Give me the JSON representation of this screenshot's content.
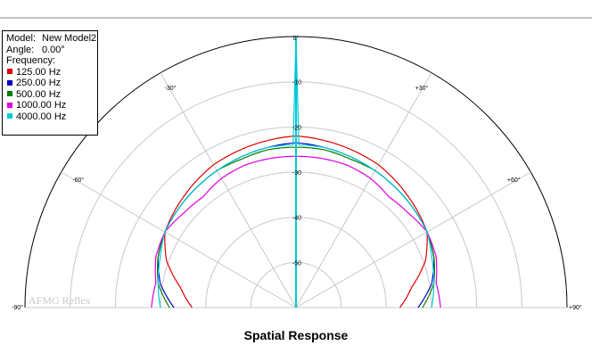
{
  "chart_data": {
    "type": "polar-line",
    "title": "Spatial Response",
    "angle_range": [
      -90,
      90
    ],
    "angle_ticks": [
      "-90°",
      "-60°",
      "-30°",
      "0°",
      "+30°",
      "+60°",
      "+90°"
    ],
    "radial_unit": "dB",
    "radial_range": [
      -60,
      0
    ],
    "radial_ticks": [
      "-10",
      "-20",
      "-30",
      "-40",
      "-50"
    ],
    "info": {
      "model_label": "Model:",
      "model_value": "New Model2",
      "angle_label": "Angle:",
      "angle_value": "0.00°",
      "frequency_label": "Frequency:"
    },
    "watermark": "AFMG Reflex",
    "series": [
      {
        "name": "125.00 Hz",
        "color": "#e00000",
        "angles": [
          -90,
          -80,
          -70,
          -60,
          -50,
          -40,
          -30,
          -20,
          -10,
          0,
          10,
          20,
          30,
          40,
          50,
          60,
          70,
          80,
          90
        ],
        "values": [
          -37,
          -34,
          -29.5,
          -26.5,
          -25.5,
          -24.5,
          -23.5,
          -23,
          -22.5,
          -22,
          -22.5,
          -23,
          -23.5,
          -24.5,
          -25.5,
          -26.5,
          -29.5,
          -34,
          -37
        ]
      },
      {
        "name": "250.00 Hz",
        "color": "#0000c0",
        "angles": [
          -90,
          -80,
          -70,
          -60,
          -50,
          -40,
          -30,
          -20,
          -10,
          0,
          10,
          20,
          30,
          40,
          50,
          60,
          70,
          80,
          90
        ],
        "values": [
          -33,
          -29.5,
          -27.5,
          -26.5,
          -26,
          -25.5,
          -25,
          -24.5,
          -24,
          -23.5,
          -24,
          -24.5,
          -25,
          -25.5,
          -26,
          -26.5,
          -27.5,
          -29.5,
          -33
        ]
      },
      {
        "name": "500.00 Hz",
        "color": "#008000",
        "angles": [
          -90,
          -80,
          -70,
          -60,
          -50,
          -40,
          -30,
          -20,
          -10,
          0,
          10,
          20,
          30,
          40,
          50,
          60,
          70,
          80,
          90
        ],
        "values": [
          -32,
          -29,
          -27.5,
          -26.5,
          -26,
          -25.5,
          -25,
          -25,
          -24.5,
          -24.5,
          -24.5,
          -25,
          -25,
          -25.5,
          -26,
          -26.5,
          -27.5,
          -29,
          -32
        ]
      },
      {
        "name": "1000.00 Hz",
        "color": "#e000e0",
        "angles": [
          -90,
          -80,
          -70,
          -60,
          -50,
          -40,
          -30,
          -20,
          -10,
          0,
          10,
          20,
          30,
          40,
          50,
          60,
          70,
          80,
          90
        ],
        "values": [
          -28,
          -28.5,
          -27,
          -26.5,
          -27.5,
          -28,
          -27,
          -26.5,
          -26.5,
          -26.5,
          -26.5,
          -26.5,
          -27,
          -28,
          -27.5,
          -26.5,
          -27,
          -28.5,
          -28
        ]
      },
      {
        "name": "4000.00 Hz",
        "color": "#00c8d8",
        "angles": [
          -90,
          -80,
          -70,
          -60,
          -50,
          -40,
          -30,
          -20,
          -10,
          0,
          10,
          20,
          30,
          40,
          50,
          60,
          70,
          80,
          90
        ],
        "values": [
          -30,
          -29,
          -28,
          -26.5,
          -26,
          -25.5,
          -25,
          -24.5,
          -24,
          0,
          -24,
          -24.5,
          -25,
          -25.5,
          -26,
          -26.5,
          -28,
          -29,
          -30
        ]
      }
    ]
  }
}
